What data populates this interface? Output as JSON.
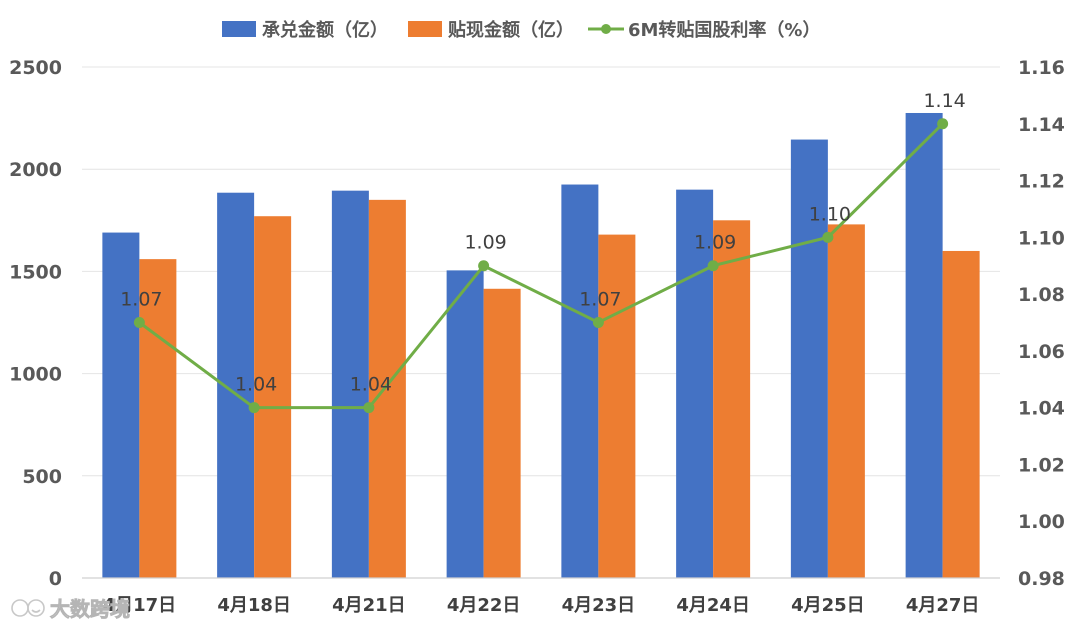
{
  "chart_data": {
    "type": "bar",
    "categories": [
      "4月17日",
      "4月18日",
      "4月21日",
      "4月22日",
      "4月23日",
      "4月24日",
      "4月25日",
      "4月27日"
    ],
    "series": [
      {
        "name": "承兑金额（亿）",
        "type": "bar",
        "axis": "left",
        "color": "#4472C4",
        "values": [
          1690,
          1885,
          1895,
          1505,
          1925,
          1900,
          2145,
          2275
        ]
      },
      {
        "name": "贴现金额（亿）",
        "type": "bar",
        "axis": "left",
        "color": "#ED7D31",
        "values": [
          1560,
          1770,
          1850,
          1415,
          1680,
          1750,
          1730,
          1600
        ]
      },
      {
        "name": "6M转贴国股利率（%）",
        "type": "line",
        "axis": "right",
        "color": "#70AD47",
        "values": [
          1.07,
          1.04,
          1.04,
          1.09,
          1.07,
          1.09,
          1.1,
          1.14
        ],
        "labels": [
          "1.07",
          "1.04",
          "1.04",
          "1.09",
          "1.07",
          "1.09",
          "1.10",
          "1.14"
        ]
      }
    ],
    "y_left": {
      "min": 0,
      "max": 2500,
      "ticks": [
        "0",
        "500",
        "1000",
        "1500",
        "2000",
        "2500"
      ]
    },
    "y_right": {
      "min": 0.98,
      "max": 1.16,
      "ticks": [
        "0.98",
        "1.00",
        "1.02",
        "1.04",
        "1.06",
        "1.08",
        "1.10",
        "1.12",
        "1.14",
        "1.16"
      ]
    },
    "grid": true,
    "legend_position": "top"
  },
  "watermark": {
    "text": "大数跨境",
    "icon": "smiley-logo-icon"
  }
}
